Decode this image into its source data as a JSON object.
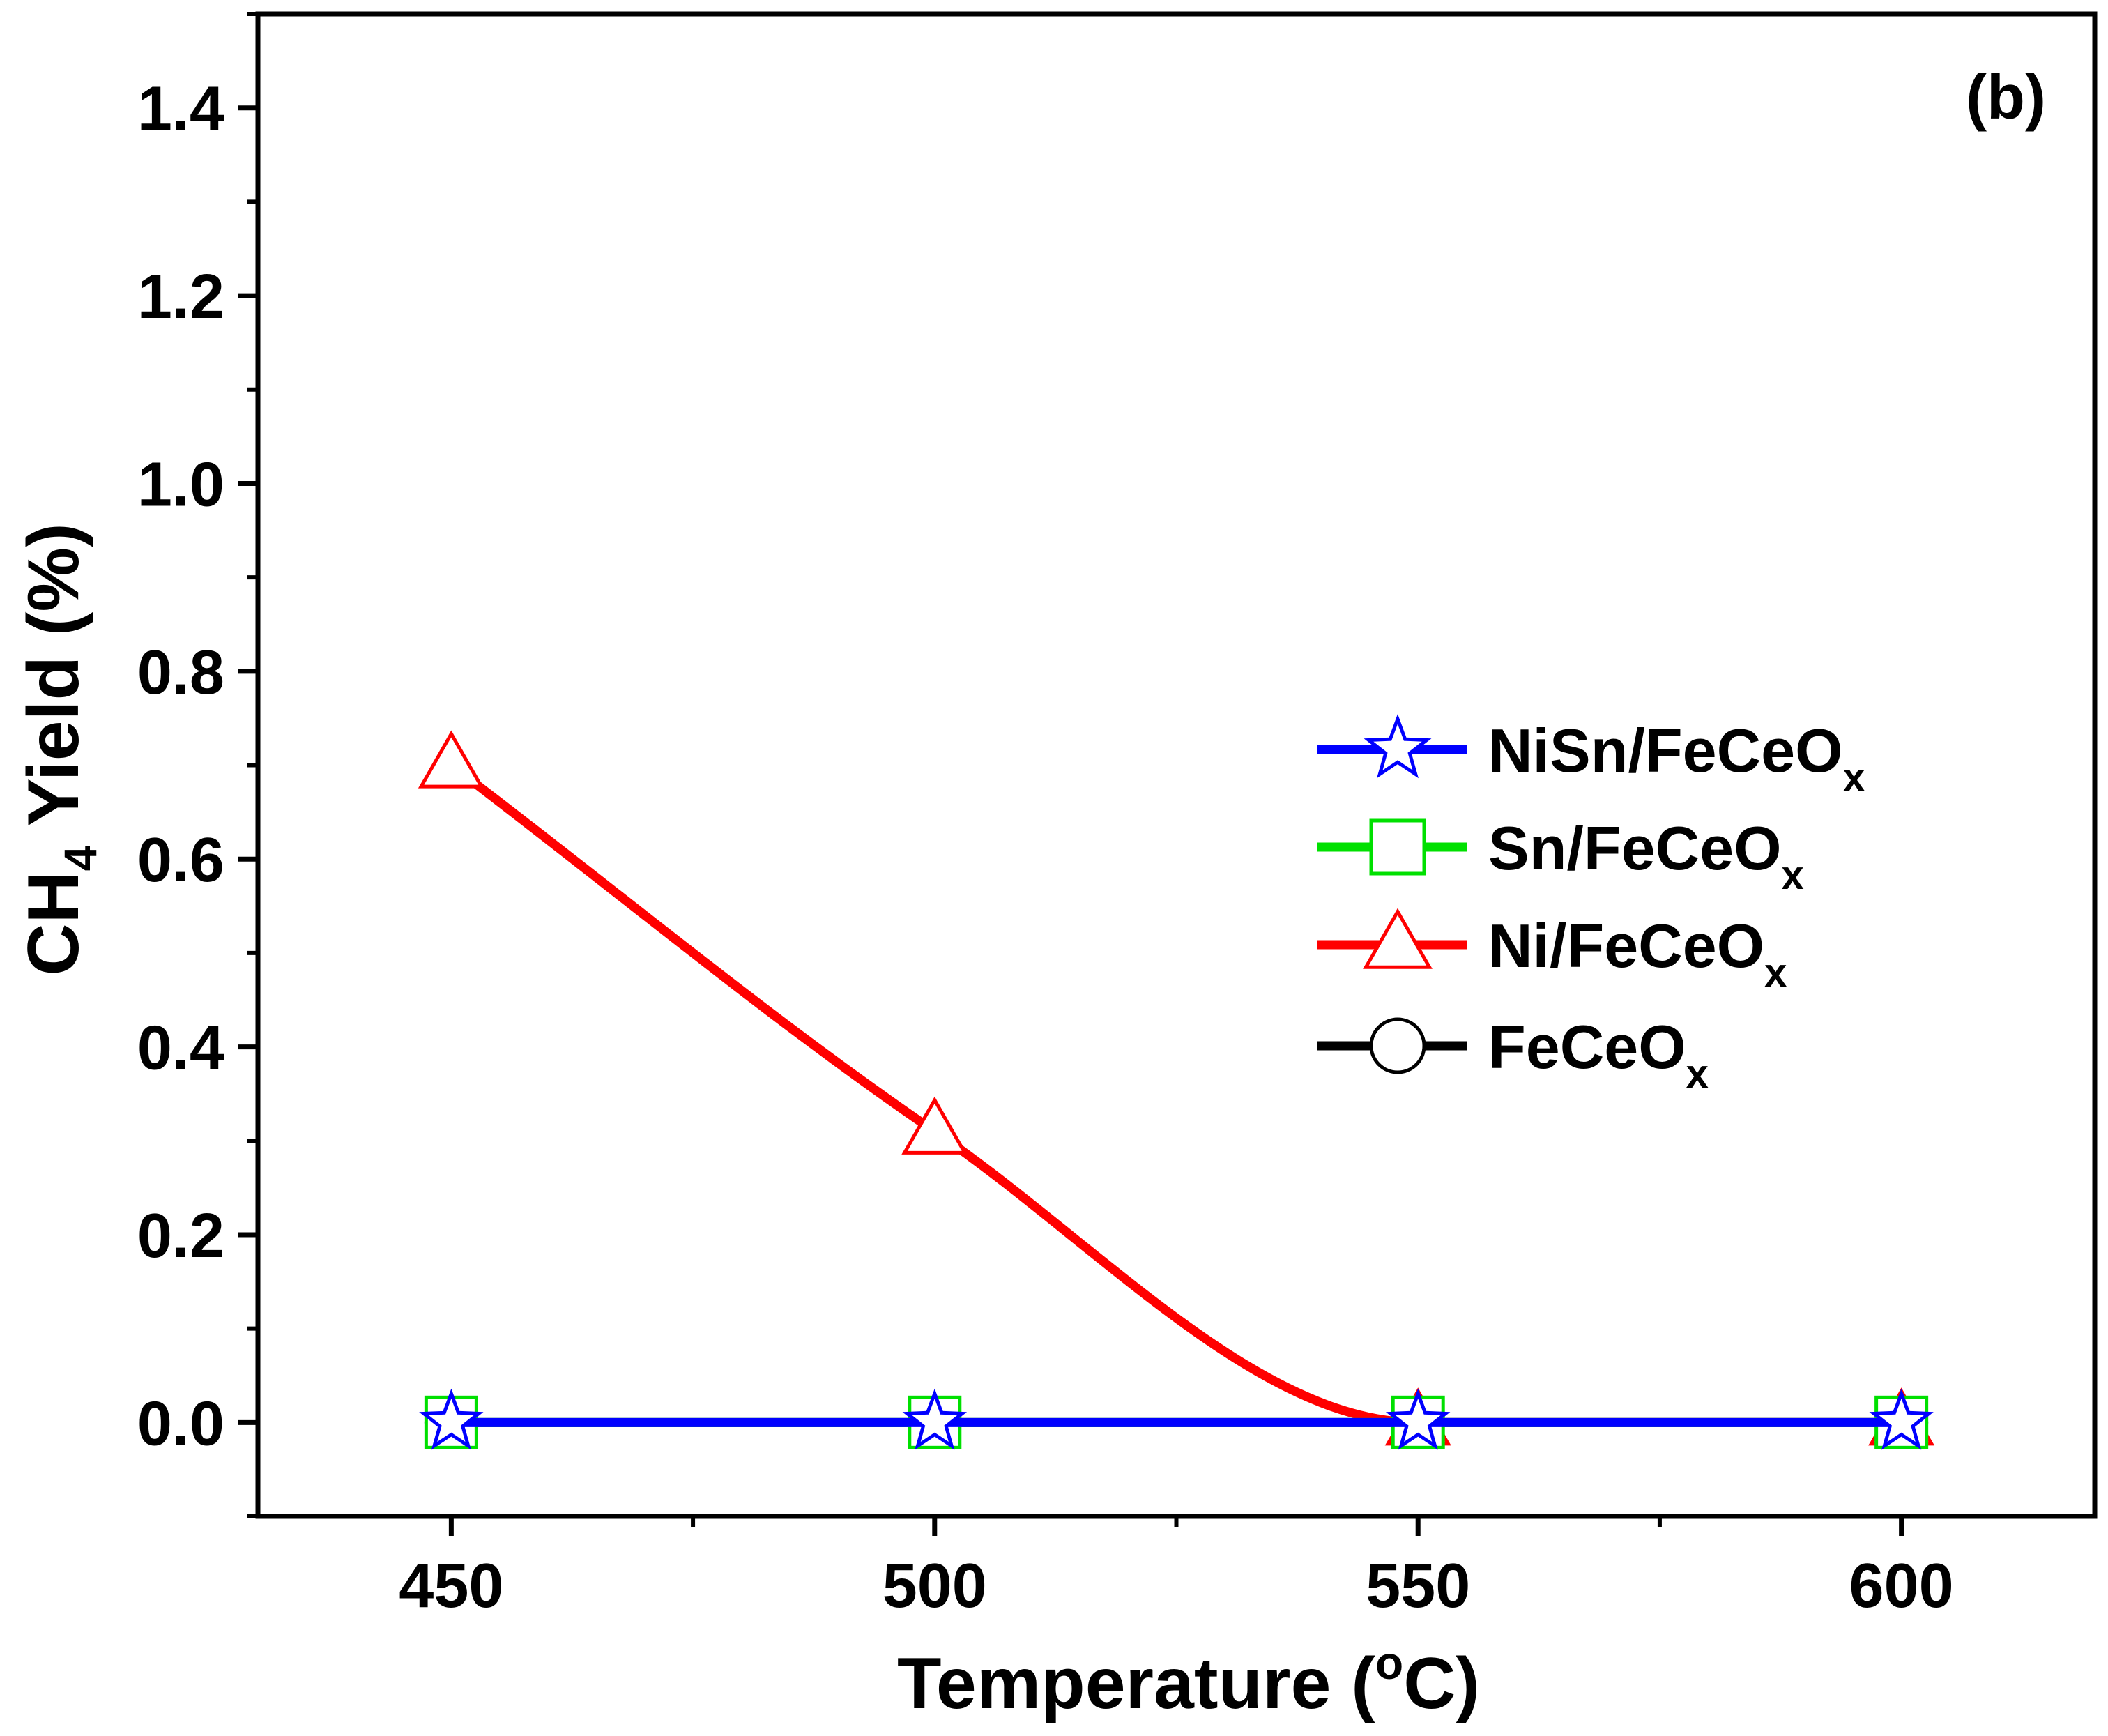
{
  "chart_data": {
    "type": "line",
    "panel_label": "(b)",
    "xlabel": "Temperature (",
    "xlabel_sup": "o",
    "xlabel_end": "C)",
    "ylabel_main": "CH",
    "ylabel_sub": "4",
    "ylabel_end": " Yield (%)",
    "xlim": [
      430,
      620
    ],
    "ylim": [
      -0.1,
      1.5
    ],
    "x_ticks": [
      450,
      500,
      550,
      600
    ],
    "x_tick_labels": [
      "450",
      "500",
      "550",
      "600"
    ],
    "x_minor_ticks": [
      475,
      525,
      575
    ],
    "y_ticks": [
      0.0,
      0.2,
      0.4,
      0.6,
      0.8,
      1.0,
      1.2,
      1.4
    ],
    "y_tick_labels": [
      "0.0",
      "0.2",
      "0.4",
      "0.6",
      "0.8",
      "1.0",
      "1.2",
      "1.4"
    ],
    "y_minor_ticks": [
      -0.1,
      0.1,
      0.3,
      0.5,
      0.7,
      0.9,
      1.1,
      1.3,
      1.5
    ],
    "legend_position": "center-right",
    "x": [
      450,
      500,
      550,
      600
    ],
    "series": [
      {
        "name": "FeCeO",
        "sub": "x",
        "marker": "circle",
        "color": "#000000",
        "values": [
          0,
          0,
          0,
          0
        ]
      },
      {
        "name": "Ni/FeCeO",
        "sub": "x",
        "marker": "triangle",
        "color": "#ff0000",
        "values": [
          0.7,
          0.31,
          0.0,
          0.0
        ],
        "smooth": true
      },
      {
        "name": "Sn/FeCeO",
        "sub": "x",
        "marker": "square",
        "color": "#00e000",
        "values": [
          0,
          0,
          0,
          0
        ]
      },
      {
        "name": "NiSn/FeCeO",
        "sub": "x",
        "marker": "star",
        "color": "#0000ff",
        "values": [
          0,
          0,
          0,
          0
        ]
      }
    ],
    "legend_order": [
      "NiSn/FeCeO",
      "Sn/FeCeO",
      "Ni/FeCeO",
      "FeCeO"
    ]
  }
}
